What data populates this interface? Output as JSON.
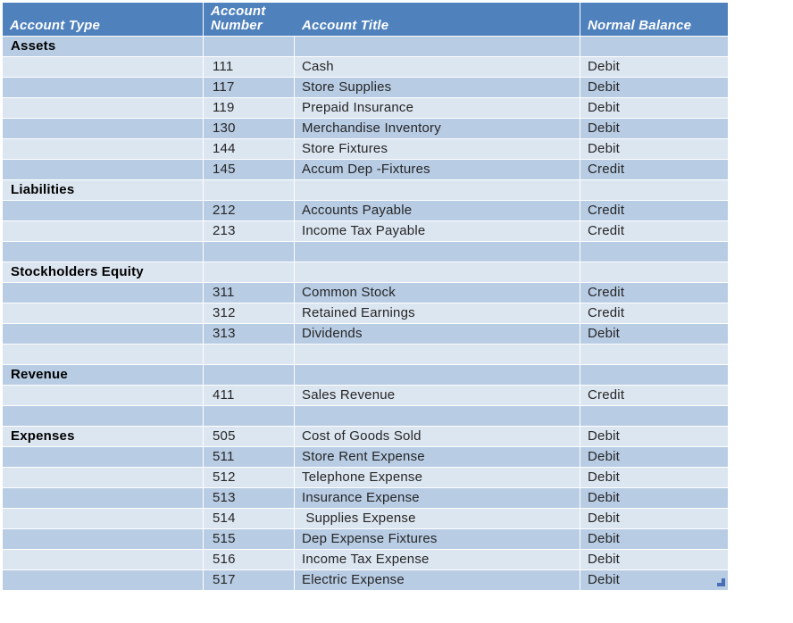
{
  "colors": {
    "header_bg": "#4f81bd",
    "header_text": "#ffffff",
    "band_dark": "#b8cce4",
    "band_light": "#dce6f1",
    "cell_text": "#262626",
    "section_text": "#000000",
    "resize_handle": "#4a6db8"
  },
  "table": {
    "columns": [
      {
        "key": "type",
        "label": "Account Type"
      },
      {
        "key": "number",
        "label": "Account Number"
      },
      {
        "key": "title",
        "label": "Account Title"
      },
      {
        "key": "balance",
        "label": "Normal Balance"
      }
    ],
    "rows": [
      {
        "type": "Assets",
        "number": "",
        "title": "",
        "balance": "",
        "band": "dark",
        "section": true
      },
      {
        "type": "",
        "number": "111",
        "title": "Cash",
        "balance": "Debit",
        "band": "light",
        "section": false
      },
      {
        "type": "",
        "number": "117",
        "title": "Store Supplies",
        "balance": "Debit",
        "band": "dark",
        "section": false
      },
      {
        "type": "",
        "number": "119",
        "title": "Prepaid Insurance",
        "balance": "Debit",
        "band": "light",
        "section": false
      },
      {
        "type": "",
        "number": "130",
        "title": "Merchandise Inventory",
        "balance": "Debit",
        "band": "dark",
        "section": false
      },
      {
        "type": "",
        "number": "144",
        "title": "Store Fixtures",
        "balance": "Debit",
        "band": "light",
        "section": false
      },
      {
        "type": "",
        "number": "145",
        "title": "Accum Dep -Fixtures",
        "balance": "Credit",
        "band": "dark",
        "section": false
      },
      {
        "type": "Liabilities",
        "number": "",
        "title": "",
        "balance": "",
        "band": "light",
        "section": true
      },
      {
        "type": "",
        "number": "212",
        "title": "Accounts Payable",
        "balance": "Credit",
        "band": "dark",
        "section": false
      },
      {
        "type": "",
        "number": "213",
        "title": "Income Tax Payable",
        "balance": "Credit",
        "band": "light",
        "section": false
      },
      {
        "type": "",
        "number": "",
        "title": "",
        "balance": "",
        "band": "dark",
        "section": false
      },
      {
        "type": "Stockholders Equity",
        "number": "",
        "title": "",
        "balance": "",
        "band": "light",
        "section": true
      },
      {
        "type": "",
        "number": "311",
        "title": "Common Stock",
        "balance": "Credit",
        "band": "dark",
        "section": false
      },
      {
        "type": "",
        "number": "312",
        "title": "Retained Earnings",
        "balance": "Credit",
        "band": "light",
        "section": false
      },
      {
        "type": "",
        "number": "313",
        "title": "Dividends",
        "balance": "Debit",
        "band": "dark",
        "section": false
      },
      {
        "type": "",
        "number": "",
        "title": "",
        "balance": "",
        "band": "light",
        "section": false
      },
      {
        "type": "Revenue",
        "number": "",
        "title": "",
        "balance": "",
        "band": "dark",
        "section": true
      },
      {
        "type": "",
        "number": "411",
        "title": "Sales Revenue",
        "balance": "Credit",
        "band": "light",
        "section": false
      },
      {
        "type": "",
        "number": "",
        "title": "",
        "balance": "",
        "band": "dark",
        "section": false
      },
      {
        "type": "Expenses",
        "number": "505",
        "title": "Cost of Goods Sold",
        "balance": "Debit",
        "band": "light",
        "section": true
      },
      {
        "type": "",
        "number": "511",
        "title": "Store Rent Expense",
        "balance": "Debit",
        "band": "dark",
        "section": false
      },
      {
        "type": "",
        "number": "512",
        "title": "Telephone Expense",
        "balance": "Debit",
        "band": "light",
        "section": false
      },
      {
        "type": "",
        "number": "513",
        "title": "Insurance Expense",
        "balance": "Debit",
        "band": "dark",
        "section": false
      },
      {
        "type": "",
        "number": "514",
        "title": " Supplies Expense",
        "balance": "Debit",
        "band": "light",
        "section": false
      },
      {
        "type": "",
        "number": "515",
        "title": "Dep Expense Fixtures",
        "balance": "Debit",
        "band": "dark",
        "section": false
      },
      {
        "type": "",
        "number": "516",
        "title": "Income Tax Expense",
        "balance": "Debit",
        "band": "light",
        "section": false
      },
      {
        "type": "",
        "number": "517",
        "title": "Electric Expense",
        "balance": "Debit",
        "band": "dark",
        "section": false
      }
    ]
  }
}
